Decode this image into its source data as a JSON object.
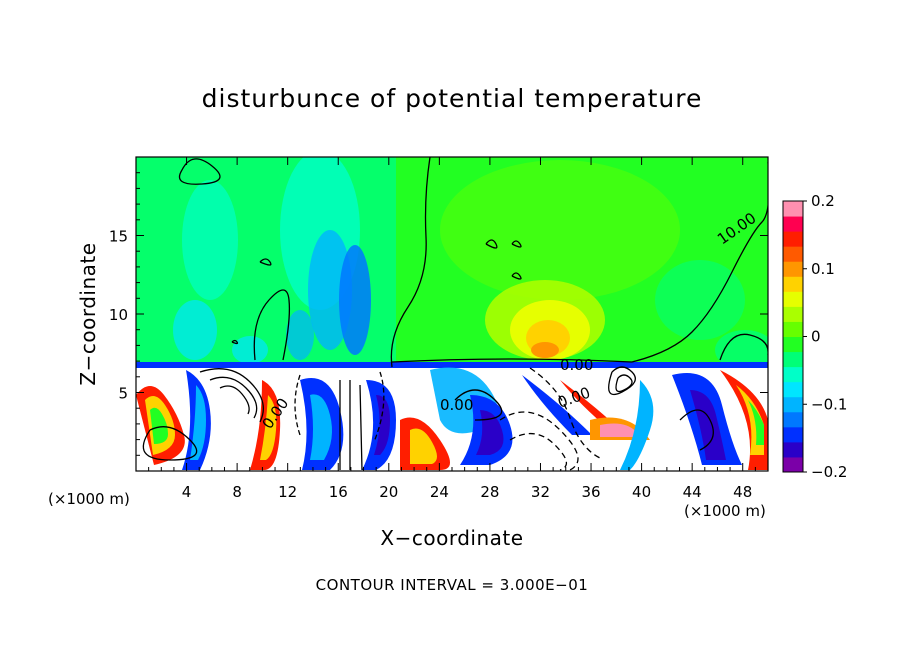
{
  "chart_data": {
    "type": "heatmap",
    "title": "disturbunce of potential temperature",
    "xlabel": "X−coordinate",
    "ylabel": "Z−coordinate",
    "x_unit": "(×1000 m)",
    "z_unit": "(×1000 m)",
    "xlim": [
      0,
      50
    ],
    "ylim": [
      0,
      20
    ],
    "x_ticks": [
      4,
      8,
      12,
      16,
      20,
      24,
      28,
      32,
      36,
      40,
      44,
      48
    ],
    "y_ticks": [
      5,
      10,
      15
    ],
    "colorbar": {
      "min": -0.2,
      "max": 0.2,
      "tick_values": [
        0.2,
        0.1,
        0,
        -0.1,
        -0.2
      ],
      "tick_labels": [
        "0.2",
        "0.1",
        "0",
        "−0.1",
        "−0.2"
      ],
      "colors": [
        "#7b00a8",
        "#2a00c8",
        "#0030ff",
        "#0078ff",
        "#00b4ff",
        "#00e6ff",
        "#00ffc8",
        "#00ff78",
        "#22ff22",
        "#66ff00",
        "#aaff00",
        "#e6ff00",
        "#ffd200",
        "#ff9600",
        "#ff5a00",
        "#ff1e00",
        "#ff0050",
        "#ff90b0"
      ]
    },
    "contour_labels": [
      "0.00",
      "0.00",
      "0.00",
      "0.00"
    ],
    "contour_labels_extra": [
      "10.00"
    ],
    "footer": "CONTOUR INTERVAL = 3.000E−01"
  }
}
